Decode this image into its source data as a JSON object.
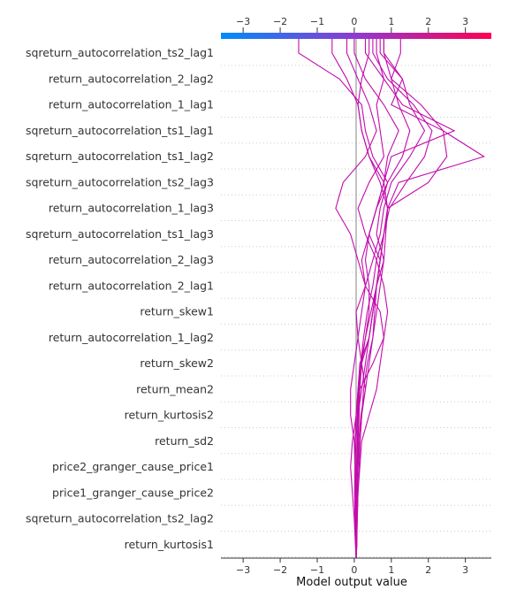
{
  "chart_data": {
    "type": "line",
    "subtype": "decision_plot",
    "xlabel": "Model output value",
    "xlim": [
      -3.6,
      3.7
    ],
    "base_value": 0.05,
    "ticks": [
      -3,
      -2,
      -1,
      0,
      1,
      2,
      3
    ],
    "tick_labels": [
      "−3",
      "−2",
      "−1",
      "0",
      "1",
      "2",
      "3"
    ],
    "colorbar": {
      "low_color": "#008bfb",
      "high_color": "#ff0052"
    },
    "line_color": "#c20cab",
    "grid": "dotted-horizontal",
    "features_top_to_bottom": [
      "sqreturn_autocorrelation_ts2_lag1",
      "return_autocorrelation_2_lag2",
      "return_autocorrelation_1_lag1",
      "sqreturn_autocorrelation_ts1_lag1",
      "sqreturn_autocorrelation_ts1_lag2",
      "sqreturn_autocorrelation_ts2_lag3",
      "return_autocorrelation_1_lag3",
      "sqreturn_autocorrelation_ts1_lag3",
      "return_autocorrelation_2_lag3",
      "return_autocorrelation_2_lag1",
      "return_skew1",
      "return_autocorrelation_1_lag2",
      "return_skew2",
      "return_mean2",
      "return_kurtosis2",
      "return_sd2",
      "price2_granger_cause_price1",
      "price1_granger_cause_price2",
      "sqreturn_autocorrelation_ts2_lag2",
      "return_kurtosis1"
    ],
    "series": [
      {
        "values": [
          0.05,
          0.07,
          0.06,
          0.08,
          0.07,
          0.1,
          0.12,
          0.15,
          0.2,
          0.3,
          0.45,
          0.6,
          0.8,
          0.6,
          0.7,
          0.9,
          1.3,
          1.5,
          1.2,
          1.0,
          1.25
        ]
      },
      {
        "values": [
          0.05,
          0.06,
          0.07,
          0.05,
          0.08,
          0.09,
          0.1,
          0.12,
          0.18,
          0.25,
          0.35,
          0.5,
          0.6,
          0.8,
          0.95,
          1.4,
          1.9,
          2.1,
          1.6,
          0.9,
          0.5
        ]
      },
      {
        "values": [
          0.05,
          0.04,
          0.03,
          0.05,
          0.06,
          0.08,
          0.1,
          0.2,
          0.3,
          0.4,
          0.5,
          0.6,
          0.7,
          0.8,
          0.9,
          2.0,
          2.5,
          2.4,
          1.8,
          1.0,
          0.8
        ]
      },
      {
        "values": [
          0.05,
          0.06,
          0.07,
          0.08,
          0.1,
          0.12,
          0.18,
          0.3,
          0.4,
          0.5,
          0.55,
          0.6,
          0.7,
          0.8,
          0.9,
          1.2,
          3.5,
          2.4,
          1.0,
          1.3,
          0.8
        ]
      },
      {
        "values": [
          0.05,
          0.04,
          0.02,
          0.01,
          0.02,
          0.05,
          0.08,
          0.1,
          0.15,
          0.4,
          0.5,
          0.6,
          0.7,
          0.4,
          0.6,
          0.8,
          1.0,
          2.7,
          1.3,
          0.8,
          0.3
        ]
      },
      {
        "values": [
          0.05,
          0.05,
          0.06,
          0.07,
          0.1,
          0.15,
          0.2,
          0.3,
          0.2,
          0.1,
          0.05,
          0.3,
          0.5,
          0.7,
          0.8,
          1.0,
          1.5,
          1.9,
          1.5,
          1.3,
          0.7
        ]
      },
      {
        "values": [
          0.05,
          0.03,
          0.0,
          -0.05,
          -0.1,
          -0.05,
          0.05,
          0.15,
          0.5,
          0.8,
          0.7,
          0.3,
          0.1,
          -0.1,
          -0.5,
          -0.3,
          0.3,
          0.6,
          0.4,
          0.1,
          -0.2
        ]
      },
      {
        "values": [
          0.05,
          0.07,
          0.08,
          0.1,
          0.15,
          0.2,
          0.4,
          0.6,
          0.7,
          0.8,
          0.9,
          0.8,
          0.6,
          0.3,
          0.1,
          0.4,
          0.8,
          0.7,
          0.6,
          0.8,
          0.6
        ]
      },
      {
        "values": [
          0.05,
          0.06,
          0.05,
          0.04,
          0.03,
          0.02,
          0.05,
          0.1,
          0.2,
          0.4,
          0.5,
          0.6,
          0.7,
          0.8,
          0.9,
          0.8,
          0.4,
          0.2,
          0.1,
          0.2,
          0.4
        ]
      },
      {
        "values": [
          0.05,
          0.05,
          0.04,
          0.03,
          0.02,
          0.0,
          -0.1,
          -0.1,
          0.0,
          0.1,
          0.2,
          0.3,
          0.2,
          0.4,
          0.6,
          0.8,
          0.9,
          1.2,
          0.8,
          0.3,
          0.0
        ]
      },
      {
        "values": [
          0.05,
          0.06,
          0.08,
          0.1,
          0.13,
          0.16,
          0.2,
          0.25,
          0.35,
          0.5,
          0.6,
          0.7,
          0.8,
          0.85,
          0.9,
          0.7,
          0.4,
          0.2,
          0.1,
          -0.2,
          -0.6
        ]
      },
      {
        "values": [
          0.05,
          0.05,
          0.06,
          0.07,
          0.08,
          0.1,
          0.13,
          0.15,
          0.18,
          0.3,
          0.4,
          0.4,
          0.3,
          0.4,
          0.6,
          0.9,
          0.5,
          0.3,
          0.2,
          -0.4,
          -1.5
        ]
      }
    ]
  }
}
